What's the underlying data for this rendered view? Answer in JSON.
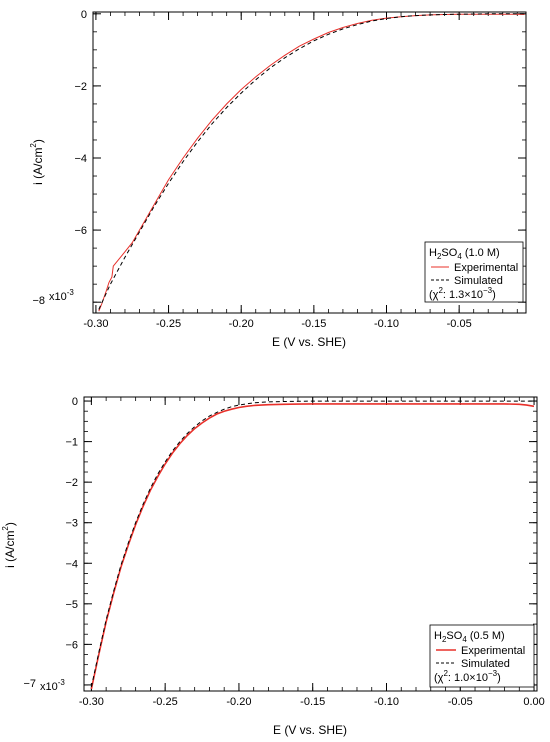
{
  "chart_data": [
    {
      "type": "line",
      "xlabel": "E (V vs. SHE)",
      "ylabel": "i (A/cm",
      "ylabel_sup": "2",
      "ylabel_close": ")",
      "xlim": [
        -0.302,
        -0.004
      ],
      "ylim": [
        -8.3,
        0.05
      ],
      "y_scale_label": "x10",
      "y_scale_exp": "-3",
      "x_ticks": [
        -0.3,
        -0.25,
        -0.2,
        -0.15,
        -0.1,
        -0.05
      ],
      "x_tick_labels": [
        "-0.30",
        "-0.25",
        "-0.20",
        "-0.15",
        "-0.10",
        "-0.05"
      ],
      "y_ticks": [
        0,
        -2,
        -4,
        -6,
        -8
      ],
      "y_tick_labels": [
        "0",
        "−2",
        "−4",
        "−6",
        "−8"
      ],
      "legend": {
        "title_prefix": "H",
        "title_sub": "2",
        "title_mid": "SO",
        "title_sub2": "4",
        "title_suffix": " (1.0 M)",
        "fit_prefix": "(χ",
        "fit_sup": "2",
        "fit_mid": ": 1.3×10",
        "fit_sup2": "−3",
        "fit_suffix": ")",
        "placement": "bottom-right"
      },
      "series": [
        {
          "name": "Experimental",
          "color": "#e8302a",
          "style": "solid",
          "x": [
            -0.298,
            -0.296,
            -0.293,
            -0.291,
            -0.289,
            -0.288,
            -0.285,
            -0.28,
            -0.275,
            -0.27,
            -0.26,
            -0.25,
            -0.24,
            -0.23,
            -0.22,
            -0.21,
            -0.2,
            -0.19,
            -0.18,
            -0.17,
            -0.16,
            -0.15,
            -0.14,
            -0.13,
            -0.12,
            -0.11,
            -0.1,
            -0.09,
            -0.08,
            -0.07,
            -0.06,
            -0.05,
            -0.04,
            -0.03,
            -0.02,
            -0.01,
            -0.005
          ],
          "y": [
            -8.25,
            -8.05,
            -7.7,
            -7.45,
            -7.3,
            -7.0,
            -6.85,
            -6.6,
            -6.35,
            -6.0,
            -5.3,
            -4.6,
            -4.0,
            -3.45,
            -2.95,
            -2.5,
            -2.1,
            -1.75,
            -1.43,
            -1.15,
            -0.9,
            -0.7,
            -0.52,
            -0.38,
            -0.27,
            -0.18,
            -0.12,
            -0.08,
            -0.05,
            -0.03,
            -0.02,
            -0.015,
            -0.01,
            -0.01,
            -0.01,
            -0.01,
            -0.02
          ]
        },
        {
          "name": "Simulated",
          "color": "#000000",
          "style": "dashed",
          "x": [
            -0.298,
            -0.29,
            -0.28,
            -0.27,
            -0.26,
            -0.25,
            -0.24,
            -0.23,
            -0.22,
            -0.21,
            -0.2,
            -0.19,
            -0.18,
            -0.17,
            -0.16,
            -0.15,
            -0.14,
            -0.13,
            -0.12,
            -0.11,
            -0.1,
            -0.09,
            -0.08,
            -0.07,
            -0.06,
            -0.05,
            -0.04,
            -0.03,
            -0.02,
            -0.01,
            -0.005
          ],
          "y": [
            -8.2,
            -7.5,
            -6.75,
            -6.05,
            -5.35,
            -4.7,
            -4.1,
            -3.55,
            -3.05,
            -2.6,
            -2.2,
            -1.83,
            -1.5,
            -1.22,
            -0.97,
            -0.75,
            -0.57,
            -0.42,
            -0.3,
            -0.2,
            -0.13,
            -0.08,
            -0.05,
            -0.03,
            -0.02,
            -0.01,
            -0.005,
            0.0,
            0.0,
            0.0,
            0.0
          ]
        }
      ]
    },
    {
      "type": "line",
      "xlabel": "E (V vs. SHE)",
      "ylabel": "i (A/cm",
      "ylabel_sup": "2",
      "ylabel_close": ")",
      "xlim": [
        -0.305,
        0.002
      ],
      "ylim": [
        -7.15,
        0.1
      ],
      "y_scale_label": "x10",
      "y_scale_exp": "-3",
      "x_ticks": [
        -0.3,
        -0.25,
        -0.2,
        -0.15,
        -0.1,
        -0.05,
        0.0
      ],
      "x_tick_labels": [
        "-0.30",
        "-0.25",
        "-0.20",
        "-0.15",
        "-0.10",
        "-0.05",
        "0.00"
      ],
      "y_ticks": [
        0,
        -1,
        -2,
        -3,
        -4,
        -5,
        -6,
        -7
      ],
      "y_tick_labels": [
        "0",
        "−1",
        "−2",
        "−3",
        "−4",
        "−5",
        "−6",
        "−7"
      ],
      "legend": {
        "title_prefix": "H",
        "title_sub": "2",
        "title_mid": "SO",
        "title_sub2": "4",
        "title_suffix": " (0.5 M)",
        "fit_prefix": "(χ",
        "fit_sup": "2",
        "fit_mid": ": 1.0×10",
        "fit_sup2": "−3",
        "fit_suffix": ")",
        "placement": "bottom-right"
      },
      "series": [
        {
          "name": "Experimental",
          "color": "#e8302a",
          "style": "solid",
          "x": [
            -0.3,
            -0.295,
            -0.29,
            -0.285,
            -0.28,
            -0.275,
            -0.27,
            -0.265,
            -0.26,
            -0.255,
            -0.25,
            -0.245,
            -0.24,
            -0.235,
            -0.23,
            -0.225,
            -0.22,
            -0.215,
            -0.21,
            -0.205,
            -0.2,
            -0.195,
            -0.19,
            -0.185,
            -0.18,
            -0.17,
            -0.16,
            -0.15,
            -0.14,
            -0.12,
            -0.1,
            -0.08,
            -0.06,
            -0.04,
            -0.02,
            -0.01,
            -0.005,
            0.0
          ],
          "y": [
            -7.1,
            -6.25,
            -5.45,
            -4.75,
            -4.1,
            -3.55,
            -3.05,
            -2.6,
            -2.2,
            -1.86,
            -1.55,
            -1.28,
            -1.05,
            -0.85,
            -0.68,
            -0.54,
            -0.42,
            -0.32,
            -0.25,
            -0.2,
            -0.16,
            -0.13,
            -0.11,
            -0.1,
            -0.09,
            -0.08,
            -0.075,
            -0.07,
            -0.07,
            -0.07,
            -0.07,
            -0.07,
            -0.07,
            -0.07,
            -0.07,
            -0.08,
            -0.1,
            -0.13
          ]
        },
        {
          "name": "Simulated",
          "color": "#000000",
          "style": "dashed",
          "x": [
            -0.3,
            -0.295,
            -0.29,
            -0.285,
            -0.28,
            -0.275,
            -0.27,
            -0.265,
            -0.26,
            -0.255,
            -0.25,
            -0.245,
            -0.24,
            -0.235,
            -0.23,
            -0.225,
            -0.22,
            -0.215,
            -0.21,
            -0.205,
            -0.2,
            -0.195,
            -0.19,
            -0.185,
            -0.18,
            -0.17,
            -0.16,
            -0.15,
            -0.14,
            -0.12,
            -0.1,
            -0.08,
            -0.06,
            -0.04,
            -0.02,
            0.0
          ],
          "y": [
            -7.05,
            -6.2,
            -5.4,
            -4.7,
            -4.05,
            -3.5,
            -3.0,
            -2.55,
            -2.15,
            -1.8,
            -1.5,
            -1.23,
            -1.0,
            -0.8,
            -0.63,
            -0.49,
            -0.37,
            -0.28,
            -0.2,
            -0.14,
            -0.1,
            -0.07,
            -0.045,
            -0.03,
            -0.02,
            -0.01,
            -0.005,
            0.0,
            0.0,
            0.0,
            0.0,
            0.0,
            0.0,
            0.0,
            0.0,
            0.0
          ]
        }
      ]
    }
  ]
}
